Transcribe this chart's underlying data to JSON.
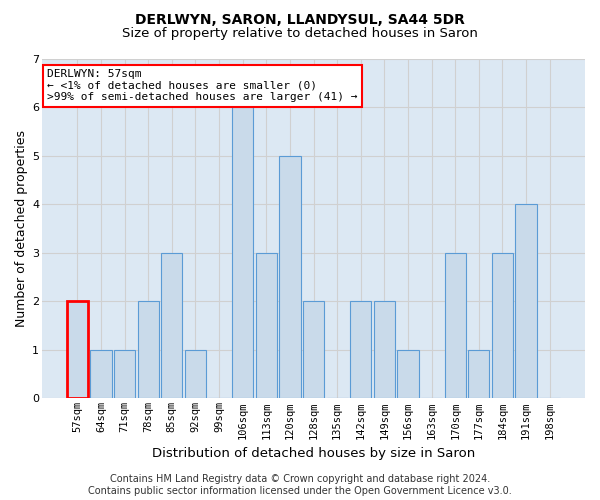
{
  "title": "DERLWYN, SARON, LLANDYSUL, SA44 5DR",
  "subtitle": "Size of property relative to detached houses in Saron",
  "xlabel": "Distribution of detached houses by size in Saron",
  "ylabel": "Number of detached properties",
  "footnote": "Contains HM Land Registry data © Crown copyright and database right 2024.\nContains public sector information licensed under the Open Government Licence v3.0.",
  "categories": [
    "57sqm",
    "64sqm",
    "71sqm",
    "78sqm",
    "85sqm",
    "92sqm",
    "99sqm",
    "106sqm",
    "113sqm",
    "120sqm",
    "128sqm",
    "135sqm",
    "142sqm",
    "149sqm",
    "156sqm",
    "163sqm",
    "170sqm",
    "177sqm",
    "184sqm",
    "191sqm",
    "198sqm"
  ],
  "values": [
    2,
    1,
    1,
    2,
    3,
    1,
    0,
    6,
    3,
    5,
    2,
    0,
    2,
    2,
    1,
    0,
    3,
    1,
    3,
    4,
    0
  ],
  "bar_color": "#c9daea",
  "bar_edge_color": "#5b9bd5",
  "highlight_index": 0,
  "highlight_edge_color": "#ff0000",
  "annotation_text": "DERLWYN: 57sqm\n← <1% of detached houses are smaller (0)\n>99% of semi-detached houses are larger (41) →",
  "annotation_box_edge_color": "#ff0000",
  "ylim": [
    0,
    7
  ],
  "yticks": [
    0,
    1,
    2,
    3,
    4,
    5,
    6,
    7
  ],
  "grid_color": "#d0d0d0",
  "bg_color": "#dce8f3",
  "title_fontsize": 10,
  "subtitle_fontsize": 9.5,
  "axis_label_fontsize": 9,
  "xlabel_fontsize": 9.5,
  "tick_fontsize": 7.5,
  "footnote_fontsize": 7,
  "annotation_fontsize": 8
}
